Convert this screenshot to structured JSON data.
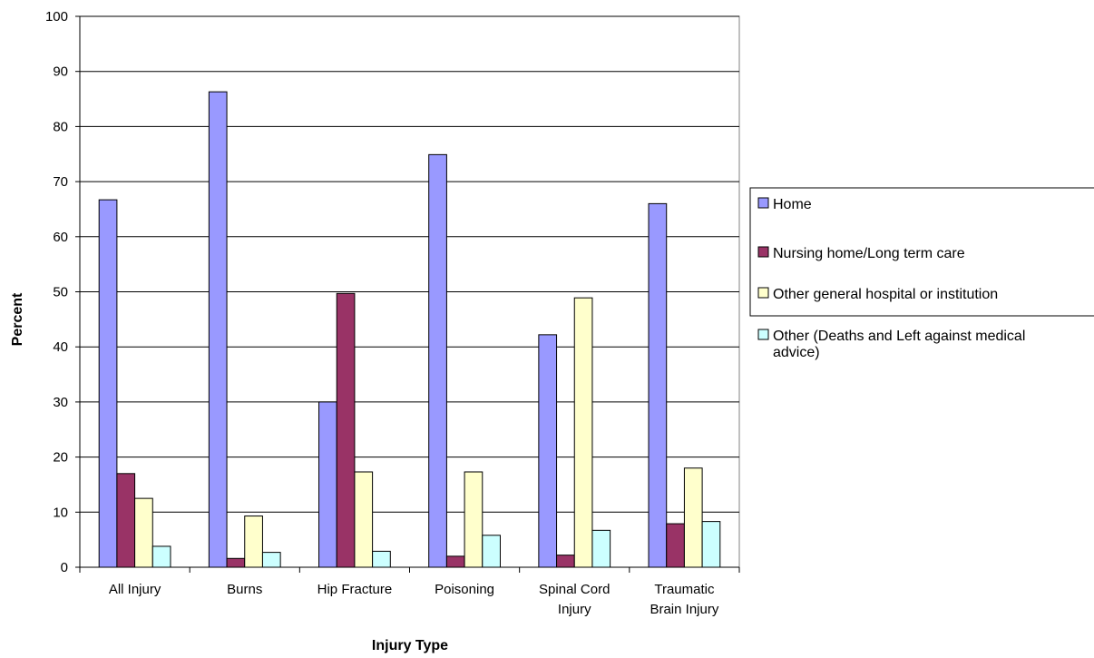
{
  "chart_data": {
    "type": "bar",
    "title": "",
    "xlabel": "Injury Type",
    "ylabel": "Percent",
    "ylim": [
      0,
      100
    ],
    "yticks": [
      0,
      10,
      20,
      30,
      40,
      50,
      60,
      70,
      80,
      90,
      100
    ],
    "grid": true,
    "legend_position": "right",
    "categories": [
      [
        "All Injury"
      ],
      [
        "Burns"
      ],
      [
        "Hip Fracture"
      ],
      [
        "Poisoning"
      ],
      [
        "Spinal Cord",
        "Injury"
      ],
      [
        "Traumatic",
        "Brain Injury"
      ]
    ],
    "series": [
      {
        "name": "Home",
        "color": "#9999ff",
        "values": [
          66.7,
          86.3,
          30.0,
          74.9,
          42.2,
          66.0
        ]
      },
      {
        "name": "Nursing home/Long term care",
        "color": "#993366",
        "values": [
          17.0,
          1.6,
          49.7,
          2.0,
          2.2,
          7.9
        ]
      },
      {
        "name": "Other general hospital or institution",
        "color": "#ffffcc",
        "values": [
          12.5,
          9.3,
          17.3,
          17.3,
          48.9,
          18.0
        ]
      },
      {
        "name": [
          "Other (Deaths and Left against medical",
          "advice)"
        ],
        "color": "#ccffff",
        "values": [
          3.8,
          2.7,
          2.9,
          5.8,
          6.7,
          8.3
        ]
      }
    ]
  }
}
